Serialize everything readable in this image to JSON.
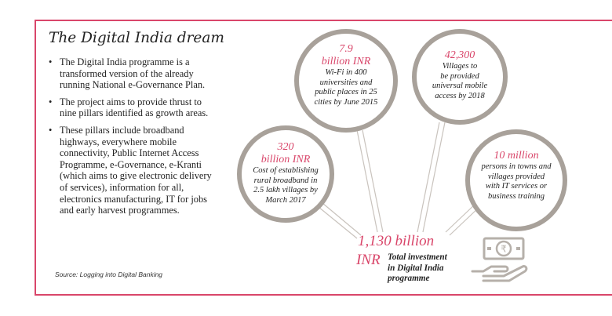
{
  "title": "The Digital India dream",
  "bullets": [
    "The Digital India programme is a transformed version of the already running National e-Governance Plan.",
    "The project aims to provide thrust to nine pillars identified as growth areas.",
    "These pillars include broadband highways, everywhere mobile connectivity, Public Internet Access Programme, e-Governance, e-Kranti (which aims to give electronic delivery of services), information for all, electronics manufacturing, IT for jobs and early harvest programmes."
  ],
  "source": "Source: Logging into Digital Banking",
  "circles": [
    {
      "amount_1": "7.9",
      "amount_2": "billion INR",
      "desc": [
        "Wi-Fi in 400",
        "universities and",
        "public places in 25",
        "cities by June 2015"
      ]
    },
    {
      "amount_1": "42,300",
      "amount_2": "",
      "desc": [
        "Villages to",
        "be provided",
        "universal mobile",
        "access by 2018"
      ]
    },
    {
      "amount_1": "320",
      "amount_2": "billion INR",
      "desc": [
        "Cost of establishing",
        "rural broadband in",
        "2.5 lakh villages by",
        "March 2017"
      ]
    },
    {
      "amount_1": "10 million",
      "amount_2": "",
      "desc": [
        "persons in towns and",
        "villages  provided",
        "with IT services or",
        "business training"
      ]
    }
  ],
  "total": {
    "amount_1": "1,130 billion",
    "amount_2": "INR",
    "label": [
      "Total investment",
      "in Digital India",
      "programme"
    ]
  },
  "colors": {
    "accent": "#d9466a",
    "circle_border": "#a8a19a",
    "icon": "#b6b0aa"
  },
  "icon": "money-hand-icon"
}
